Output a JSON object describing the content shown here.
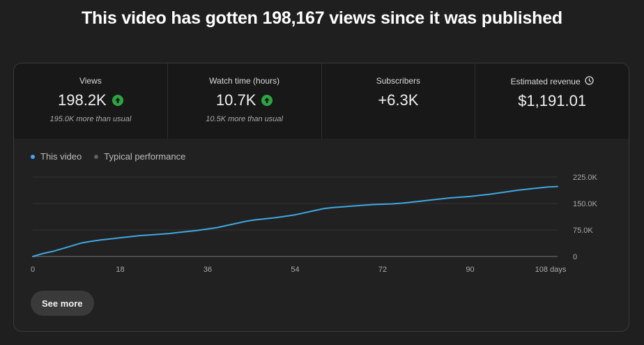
{
  "headline": "This video has gotten 198,167 views since it was published",
  "metrics": [
    {
      "label": "Views",
      "value": "198.2K",
      "trend": "up",
      "sub": "195.0K more than usual"
    },
    {
      "label": "Watch time (hours)",
      "value": "10.7K",
      "trend": "up",
      "sub": "10.5K more than usual"
    },
    {
      "label": "Subscribers",
      "value": "+6.3K",
      "trend": "none",
      "sub": ""
    },
    {
      "label": "Estimated revenue",
      "value": "$1,191.01",
      "trend": "none",
      "sub": "",
      "icon": "clock-icon"
    }
  ],
  "legend": {
    "this_video": "This video",
    "typical": "Typical performance"
  },
  "colors": {
    "accent": "#3ea6ff",
    "line": "#3fa9e0",
    "typical_dot": "#606060",
    "up": "#2ba640"
  },
  "see_more": "See more",
  "chart_data": {
    "type": "line",
    "x_tick_labels": [
      "0",
      "18",
      "36",
      "54",
      "72",
      "90",
      "108 days"
    ],
    "y_tick_labels": [
      "0",
      "75.0K",
      "150.0K",
      "225.0K"
    ],
    "xlim": [
      0,
      108
    ],
    "ylim": [
      0,
      225000
    ],
    "grid": true,
    "legend_position": "top-left",
    "series": [
      {
        "name": "This video",
        "x": [
          0,
          2,
          4,
          6,
          8,
          10,
          12,
          14,
          16,
          18,
          20,
          22,
          24,
          26,
          28,
          30,
          32,
          34,
          36,
          38,
          40,
          42,
          44,
          46,
          48,
          50,
          52,
          54,
          56,
          58,
          60,
          62,
          64,
          66,
          68,
          70,
          72,
          74,
          76,
          78,
          80,
          82,
          84,
          86,
          88,
          90,
          92,
          94,
          96,
          98,
          100,
          102,
          104,
          106,
          108
        ],
        "y": [
          0,
          8000,
          14000,
          22000,
          30000,
          38000,
          43000,
          47000,
          50000,
          53000,
          56000,
          59000,
          61000,
          63000,
          65000,
          68000,
          71000,
          74000,
          78000,
          82000,
          88000,
          94000,
          100000,
          104000,
          107000,
          110000,
          114000,
          118000,
          124000,
          130000,
          136000,
          139000,
          141000,
          143000,
          145000,
          147000,
          148000,
          149000,
          151000,
          154000,
          157000,
          160000,
          163000,
          166000,
          168000,
          170000,
          173000,
          176000,
          180000,
          184000,
          188000,
          191000,
          194000,
          197000,
          198200
        ]
      }
    ]
  }
}
